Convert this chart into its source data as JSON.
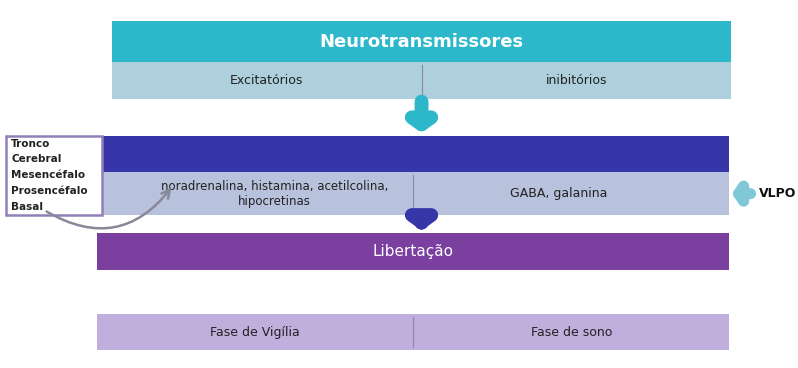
{
  "fig_width": 7.98,
  "fig_height": 3.68,
  "dpi": 100,
  "bg_color": "#ffffff",
  "box1_header_color": "#2CB8CA",
  "box1_header_text": "Neurotransmissores",
  "box1_header_text_color": "#ffffff",
  "box1_body_color": "#AECFDC",
  "box1_left_text": "Excitatórios",
  "box1_right_text": "inibitórios",
  "box1_body_text_color": "#222222",
  "box2_header_color": "#3636A8",
  "box2_body_color": "#B8C2DC",
  "box2_left_text": "noradrenalina, histamina, acetilcolina,\nhipocretinas",
  "box2_right_text": "GABA, galanina",
  "box2_body_text_color": "#222222",
  "box3_header_color": "#7B3FA0",
  "box3_header_text": "Libertação",
  "box3_header_text_color": "#ffffff",
  "box3_body_color": "#C0AEDD",
  "box3_left_text": "Fase de Vigília",
  "box3_right_text": "Fase de sono",
  "box3_body_text_color": "#222222",
  "arrow1_color": "#2CB8CA",
  "arrow2_color": "#3636A8",
  "sidebar_box_color": "#ffffff",
  "sidebar_border_color": "#9080B8",
  "sidebar_text": [
    "Tronco",
    "Cerebral",
    "Mesencéfalo",
    "Prosencéfalo",
    "Basal"
  ],
  "sidebar_text_color": "#222222",
  "vlpo_text": "VLPO",
  "vlpo_text_color": "#111111",
  "vlpo_arrow_color": "#80C8D8",
  "curved_arrow_color": "#888899",
  "divider_color": "#8888A8"
}
